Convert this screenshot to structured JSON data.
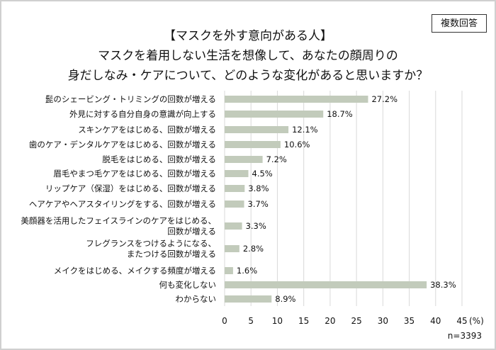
{
  "badge": "複数回答",
  "title_lines": [
    "【マスクを外す意向がある人】",
    "マスクを着用しない生活を想像して、あなたの顔周りの",
    "身だしなみ・ケアについて、どのような変化があると思いますか？"
  ],
  "colors": {
    "bar": "#c2cbbb",
    "grid": "#d9d9d9"
  },
  "chart_data": {
    "type": "bar",
    "orientation": "horizontal",
    "title": "【マスクを外す意向がある人】マスクを着用しない生活を想像して、あなたの顔周りの身だしなみ・ケアについて、どのような変化があると思いますか？",
    "categories": [
      [
        "髭のシェービング・トリミングの回数が増える"
      ],
      [
        "外見に対する自分自身の意識が向上する"
      ],
      [
        "スキンケアをはじめる、回数が増える"
      ],
      [
        "歯のケア・デンタルケアをはじめる、回数が増える"
      ],
      [
        "脱毛をはじめる、回数が増える"
      ],
      [
        "眉毛やまつ毛ケアをはじめる、回数が増える"
      ],
      [
        "リップケア（保湿）をはじめる、回数が増える"
      ],
      [
        "ヘアケアやヘアスタイリングをする、回数が増える"
      ],
      [
        "美顔器を活用したフェイスラインのケアをはじめる、",
        "回数が増える"
      ],
      [
        "フレグランスをつけるようになる、",
        "またつける回数が増える"
      ],
      [
        "メイクをはじめる、メイクする頻度が増える"
      ],
      [
        "何も変化しない"
      ],
      [
        "わからない"
      ]
    ],
    "values": [
      27.2,
      18.7,
      12.1,
      10.6,
      7.2,
      4.5,
      3.8,
      3.7,
      3.3,
      2.8,
      1.6,
      38.3,
      8.9
    ],
    "data_labels": [
      "27.2%",
      "18.7%",
      "12.1%",
      "10.6%",
      "7.2%",
      "4.5%",
      "3.8%",
      "3.7%",
      "3.3%",
      "2.8%",
      "1.6%",
      "38.3%",
      "8.9%"
    ],
    "xlim": [
      0,
      45
    ],
    "xticks": [
      "0",
      "5",
      "10",
      "15",
      "20",
      "25",
      "30",
      "35",
      "40",
      "45"
    ],
    "xunit": "(%)",
    "grid": true,
    "note": "n=3393"
  }
}
